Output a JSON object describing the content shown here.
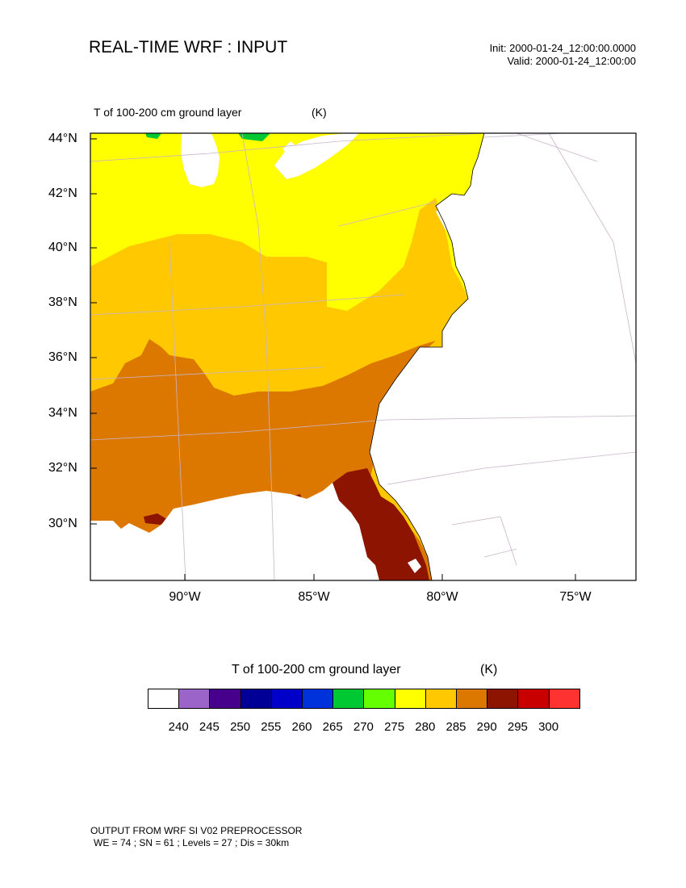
{
  "header": {
    "title": "REAL-TIME WRF : INPUT",
    "init": "Init: 2000-01-24_12:00:00.0000",
    "valid": "Valid: 2000-01-24_12:00:00"
  },
  "field": {
    "name": "T of 100-200 cm ground layer",
    "units": "(K)"
  },
  "map": {
    "lat_ticks": [
      "44°N",
      "42°N",
      "40°N",
      "38°N",
      "36°N",
      "34°N",
      "32°N",
      "30°N"
    ],
    "lon_ticks": [
      "90°W",
      "85°W",
      "80°W",
      "75°W"
    ],
    "fill_colors": {
      "275-280": "#ffff00",
      "280-285": "#ffc800",
      "285-290": "#dc7800",
      "290-295": "#8c1400",
      "265-270": "#00c832",
      "ocean": "#ffffff"
    }
  },
  "colorbar": {
    "title": "T of 100-200 cm ground layer",
    "units": "(K)",
    "colors": [
      "#ffffff",
      "#9b64c8",
      "#46008c",
      "#000096",
      "#0000c8",
      "#0032dc",
      "#00c832",
      "#64ff00",
      "#ffff00",
      "#ffc800",
      "#dc7800",
      "#8c1400",
      "#c80000",
      "#ff3232"
    ],
    "labels": [
      "240",
      "245",
      "250",
      "255",
      "260",
      "265",
      "270",
      "275",
      "280",
      "285",
      "290",
      "295",
      "300"
    ]
  },
  "footer": {
    "line1": "OUTPUT FROM WRF SI V02 PREPROCESSOR",
    "line2": "WE = 74 ; SN = 61 ; Levels = 27 ; Dis = 30km"
  }
}
